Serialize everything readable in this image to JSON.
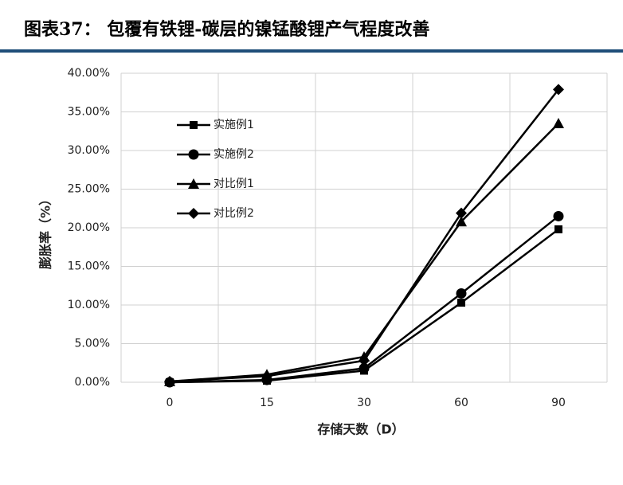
{
  "header": {
    "title": "图表37：  包覆有铁锂-碳层的镍锰酸锂产气程度改善"
  },
  "chart_data": {
    "type": "line",
    "x_label": "存储天数（D）",
    "y_label": "膨胀率（%）",
    "categories": [
      "0",
      "15",
      "30",
      "60",
      "90"
    ],
    "series": [
      {
        "name": "实施例1",
        "color": "#000000",
        "marker": "square",
        "values": [
          0,
          0.2,
          1.5,
          10.3,
          19.8
        ]
      },
      {
        "name": "实施例2",
        "color": "#000000",
        "marker": "circle",
        "values": [
          0,
          0.3,
          1.8,
          11.5,
          21.5
        ]
      },
      {
        "name": "对比例1",
        "color": "#000000",
        "marker": "triangle",
        "values": [
          0.1,
          1.0,
          3.3,
          20.8,
          33.5
        ]
      },
      {
        "name": "对比例2",
        "color": "#000000",
        "marker": "diamond",
        "values": [
          0.1,
          0.8,
          2.8,
          21.9,
          37.9
        ]
      }
    ],
    "ylim": [
      0,
      40
    ],
    "yticks": [
      {
        "value": 0,
        "label": "0.00%"
      },
      {
        "value": 5,
        "label": "5.00%"
      },
      {
        "value": 10,
        "label": "10.00%"
      },
      {
        "value": 15,
        "label": "15.00%"
      },
      {
        "value": 20,
        "label": "20.00%"
      },
      {
        "value": 25,
        "label": "25.00%"
      },
      {
        "value": 30,
        "label": "30.00%"
      },
      {
        "value": 35,
        "label": "35.00%"
      },
      {
        "value": 40,
        "label": "40.00%"
      }
    ],
    "grid": true,
    "legend": "upper-left"
  }
}
